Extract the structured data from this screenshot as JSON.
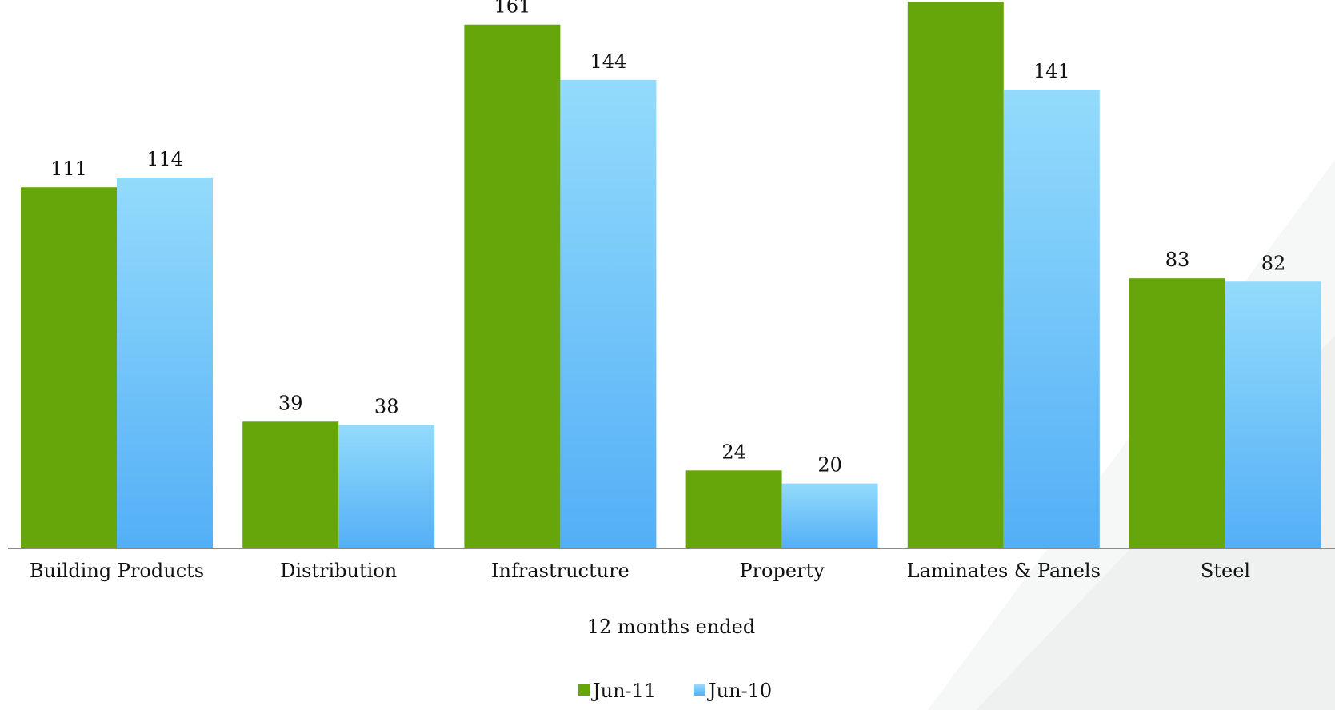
{
  "chart_data": {
    "type": "bar",
    "categories": [
      "Building Products",
      "Distribution",
      "Infrastructure",
      "Property",
      "Laminates & Panels",
      "Steel"
    ],
    "series": [
      {
        "name": "Jun-11",
        "values": [
          111,
          39,
          161,
          24,
          168,
          83
        ],
        "color": "#66A60B"
      },
      {
        "name": "Jun-10",
        "values": [
          114,
          38,
          144,
          20,
          141,
          82
        ],
        "color": "#5BB6F5"
      }
    ],
    "xlabel": "12 months ended",
    "ylabel": "",
    "ylim": [
      0,
      175
    ],
    "grid": false,
    "legend_position": "bottom-center",
    "data_labels": true
  }
}
